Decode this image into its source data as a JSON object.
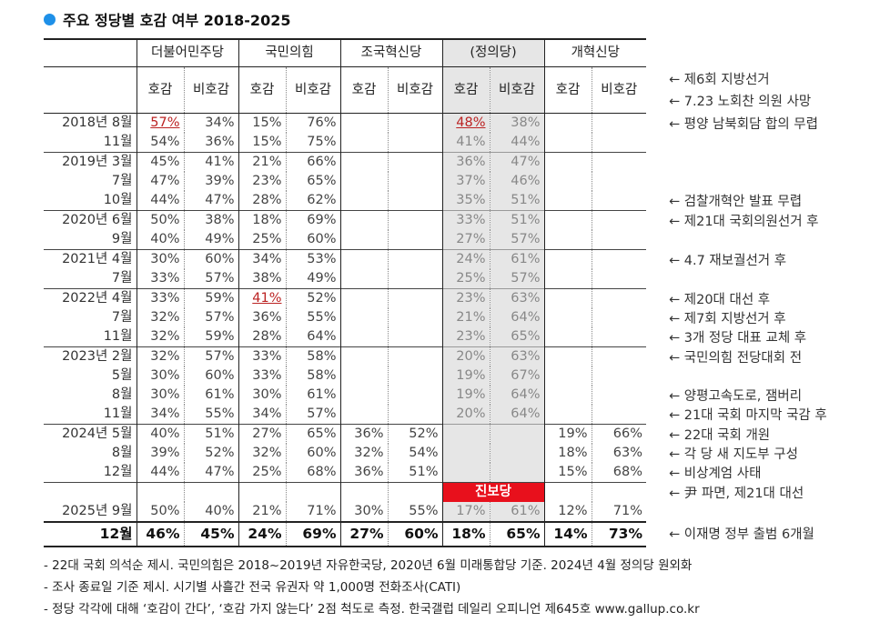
{
  "title": "주요 정당별 호감 여부 2018-2025",
  "parties": [
    "더불어민주당",
    "국민의힘",
    "조국혁신당",
    "(정의당)",
    "개혁신당"
  ],
  "subheads": [
    "호감",
    "비호감"
  ],
  "rows": [
    {
      "label": "2018년 8월",
      "sep": true,
      "v": [
        "57%",
        "34%",
        "15%",
        "76%",
        "",
        "",
        "48%",
        "38%",
        "",
        ""
      ],
      "ul": [
        0,
        6
      ]
    },
    {
      "label": "11월",
      "sep": false,
      "v": [
        "54%",
        "36%",
        "15%",
        "75%",
        "",
        "",
        "41%",
        "44%",
        "",
        ""
      ]
    },
    {
      "label": "2019년 3월",
      "sep": true,
      "v": [
        "45%",
        "41%",
        "21%",
        "66%",
        "",
        "",
        "36%",
        "47%",
        "",
        ""
      ]
    },
    {
      "label": "7월",
      "sep": false,
      "v": [
        "47%",
        "39%",
        "23%",
        "65%",
        "",
        "",
        "37%",
        "46%",
        "",
        ""
      ]
    },
    {
      "label": "10월",
      "sep": false,
      "v": [
        "44%",
        "47%",
        "28%",
        "62%",
        "",
        "",
        "35%",
        "51%",
        "",
        ""
      ]
    },
    {
      "label": "2020년 6월",
      "sep": true,
      "v": [
        "50%",
        "38%",
        "18%",
        "69%",
        "",
        "",
        "33%",
        "51%",
        "",
        ""
      ]
    },
    {
      "label": "9월",
      "sep": false,
      "v": [
        "40%",
        "49%",
        "25%",
        "60%",
        "",
        "",
        "27%",
        "57%",
        "",
        ""
      ]
    },
    {
      "label": "2021년 4월",
      "sep": true,
      "v": [
        "30%",
        "60%",
        "34%",
        "53%",
        "",
        "",
        "24%",
        "61%",
        "",
        ""
      ]
    },
    {
      "label": "7월",
      "sep": false,
      "v": [
        "33%",
        "57%",
        "38%",
        "49%",
        "",
        "",
        "25%",
        "57%",
        "",
        ""
      ]
    },
    {
      "label": "2022년 4월",
      "sep": true,
      "v": [
        "33%",
        "59%",
        "41%",
        "52%",
        "",
        "",
        "23%",
        "63%",
        "",
        ""
      ],
      "ul": [
        2
      ]
    },
    {
      "label": "7월",
      "sep": false,
      "v": [
        "32%",
        "57%",
        "36%",
        "55%",
        "",
        "",
        "21%",
        "64%",
        "",
        ""
      ]
    },
    {
      "label": "11월",
      "sep": false,
      "v": [
        "32%",
        "59%",
        "28%",
        "64%",
        "",
        "",
        "23%",
        "65%",
        "",
        ""
      ]
    },
    {
      "label": "2023년 2월",
      "sep": true,
      "v": [
        "32%",
        "57%",
        "33%",
        "58%",
        "",
        "",
        "20%",
        "63%",
        "",
        ""
      ]
    },
    {
      "label": "5월",
      "sep": false,
      "v": [
        "30%",
        "60%",
        "33%",
        "58%",
        "",
        "",
        "19%",
        "67%",
        "",
        ""
      ]
    },
    {
      "label": "8월",
      "sep": false,
      "v": [
        "30%",
        "61%",
        "30%",
        "61%",
        "",
        "",
        "19%",
        "64%",
        "",
        ""
      ]
    },
    {
      "label": "11월",
      "sep": false,
      "v": [
        "34%",
        "55%",
        "34%",
        "57%",
        "",
        "",
        "20%",
        "64%",
        "",
        ""
      ]
    },
    {
      "label": "2024년 5월",
      "sep": true,
      "v": [
        "40%",
        "51%",
        "27%",
        "65%",
        "36%",
        "52%",
        "",
        "",
        "19%",
        "66%"
      ],
      "g": true
    },
    {
      "label": "8월",
      "sep": false,
      "v": [
        "39%",
        "52%",
        "32%",
        "60%",
        "32%",
        "54%",
        "",
        "",
        "18%",
        "63%"
      ],
      "g": true
    },
    {
      "label": "12월",
      "sep": false,
      "v": [
        "44%",
        "47%",
        "25%",
        "68%",
        "36%",
        "51%",
        "",
        "",
        "15%",
        "68%"
      ],
      "g": true
    },
    {
      "label": "",
      "sep": true,
      "jin": true,
      "v": [
        "",
        "",
        "",
        "",
        "",
        "",
        "",
        "",
        "",
        ""
      ]
    },
    {
      "label": "2025년 9월",
      "sep": false,
      "v": [
        "50%",
        "40%",
        "21%",
        "71%",
        "30%",
        "55%",
        "17%",
        "61%",
        "12%",
        "71%"
      ]
    }
  ],
  "jinbo_label": "진보당",
  "final": {
    "label": "12월",
    "v": [
      "46%",
      "45%",
      "24%",
      "69%",
      "27%",
      "60%",
      "18%",
      "65%",
      "14%",
      "73%"
    ]
  },
  "notes": [
    {
      "row": "h2a",
      "text": "← 제6회 지방선거"
    },
    {
      "row": "h2b",
      "text": "← 7.23 노회찬 의원 사망"
    },
    {
      "row": 0,
      "text": "← 평양 남북회담 합의 무렵"
    },
    {
      "row": 4,
      "text": "← 검찰개혁안 발표 무렵"
    },
    {
      "row": 5,
      "text": "← 제21대 국회의원선거 후"
    },
    {
      "row": 7,
      "text": "← 4.7 재보궐선거 후"
    },
    {
      "row": 9,
      "text": "← 제20대 대선 후"
    },
    {
      "row": 10,
      "text": "← 제7회 지방선거 후"
    },
    {
      "row": 11,
      "text": "← 3개 정당 대표 교체 후"
    },
    {
      "row": 12,
      "text": "← 국민의힘 전당대회 전"
    },
    {
      "row": 14,
      "text": "← 양평고속도로, 잼버리"
    },
    {
      "row": 15,
      "text": "← 21대 국회 마지막 국감 후"
    },
    {
      "row": 16,
      "text": "← 22대 국회 개원"
    },
    {
      "row": 17,
      "text": "← 각 당 새 지도부 구성"
    },
    {
      "row": 18,
      "text": "← 비상계엄 사태"
    },
    {
      "row": 19,
      "text": "← 尹 파면, 제21대 대선"
    },
    {
      "row": "final",
      "text": "← 이재명 정부 출범 6개월"
    }
  ],
  "footnotes": [
    "- 22대 국회 의석순 제시. 국민의힘은 2018~2019년 자유한국당, 2020년 6월 미래통합당 기준. 2024년 4월 정의당 원외화",
    "- 조사 종료일 기준 제시. 시기별 사흘간 전국 유권자 약 1,000명 전화조사(CATI)",
    "- 정당 각각에 대해 ‘호감이 간다’, ‘호감 가지 않는다’ 2점 척도로 측정. 한국갤럽 데일리 오피니언 제645호 www.gallup.co.kr"
  ]
}
